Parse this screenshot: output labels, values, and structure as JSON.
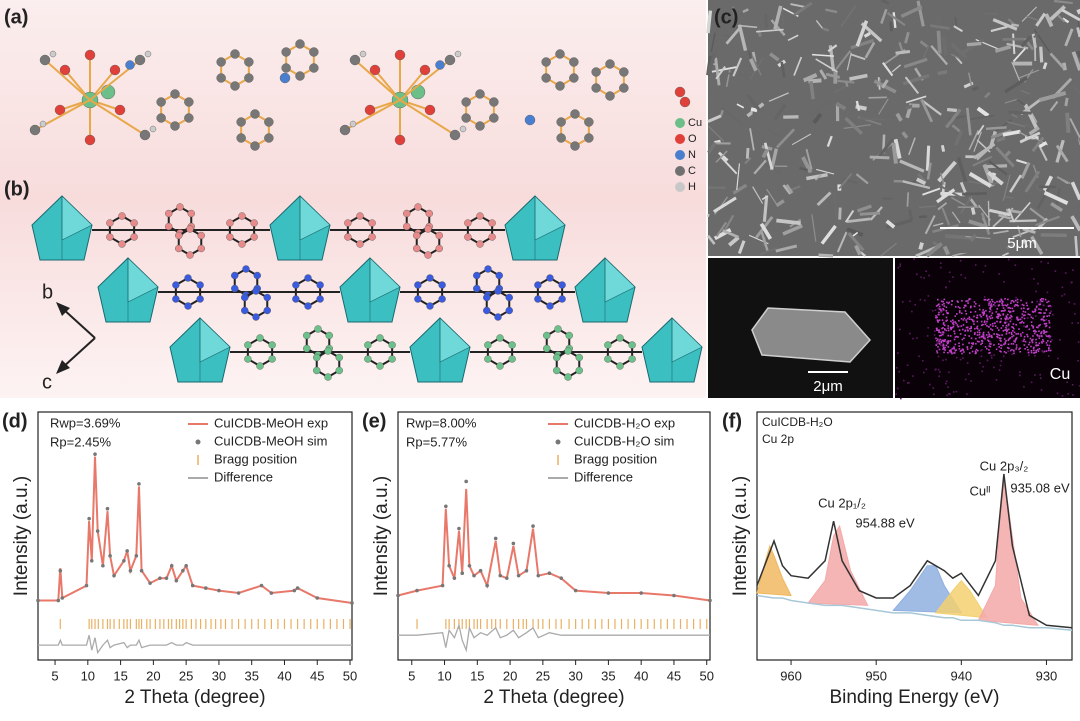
{
  "panels": {
    "a": {
      "label": "(a)",
      "legend": [
        "Cu",
        "O",
        "N",
        "C",
        "H"
      ]
    },
    "b": {
      "label": "(b)",
      "axes": [
        "b",
        "c"
      ]
    },
    "c": {
      "label": "(c)",
      "scale_bars": [
        "5μm",
        "2μm"
      ],
      "element": "Cu"
    }
  },
  "chart_data": [
    {
      "type": "line",
      "label": "(d)",
      "annotations": [
        "Rwp=3.69%",
        "Rp=2.45%"
      ],
      "xlabel": "2 Theta (degree)",
      "ylabel": "Intensity (a.u.)",
      "xlim": [
        2.4,
        50.3
      ],
      "xticks": [
        5,
        10,
        15,
        20,
        25,
        30,
        35,
        40,
        45,
        50
      ],
      "ylim": [
        0,
        100
      ],
      "x": [
        2.4,
        5.5,
        5.8,
        6.1,
        9.8,
        10.2,
        10.6,
        11.1,
        11.5,
        12.3,
        13.0,
        13.4,
        14.0,
        15.5,
        16.0,
        16.5,
        17.4,
        17.8,
        18.2,
        19.5,
        21,
        22,
        22.8,
        23.5,
        24.5,
        25,
        26,
        28,
        30,
        33,
        36.5,
        38,
        41.5,
        42,
        45,
        50.3
      ],
      "series": [
        {
          "name": "CuICDB-MeOH exp",
          "color": "#e8786a",
          "mark": "line",
          "values": [
            24,
            24,
            37,
            25,
            30,
            56,
            40,
            82,
            52,
            38,
            60,
            42,
            34,
            40,
            44,
            36,
            42,
            70,
            36,
            31,
            33,
            33,
            38,
            32,
            36,
            38,
            30,
            29,
            28,
            27,
            30,
            27,
            28,
            29,
            25,
            23
          ]
        },
        {
          "name": "CuICDB-MeOH sim",
          "color": "#777777",
          "mark": "dots",
          "values": [
            24,
            24,
            36,
            25,
            30,
            57,
            40,
            83,
            52,
            38,
            61,
            42,
            34,
            40,
            44,
            36,
            42,
            71,
            36,
            31,
            33,
            33,
            38,
            32,
            36,
            38,
            30,
            29,
            28,
            27,
            30,
            27,
            28,
            29,
            25,
            23
          ]
        },
        {
          "name": "Bragg position",
          "color": "#e8b060",
          "mark": "ticks",
          "positions": [
            5.8,
            10.2,
            10.6,
            11.1,
            11.6,
            12.3,
            13.0,
            13.4,
            14.0,
            14.8,
            15.5,
            16.0,
            16.5,
            17.4,
            17.8,
            18.2,
            19.0,
            19.5,
            20.3,
            21.0,
            21.6,
            22.3,
            22.8,
            23.5,
            24.0,
            24.5,
            25.0,
            25.8,
            26.5,
            27.2,
            28.0,
            28.8,
            29.5,
            30.3,
            31.0,
            32.0,
            33.0,
            34.0,
            35.0,
            36.0,
            37.0,
            38.0,
            39.0,
            40.0,
            41.0,
            42.0,
            43.0,
            44.0,
            45.0,
            46.0,
            47.0,
            48.0,
            49.0,
            50.0
          ]
        },
        {
          "name": "Difference",
          "color": "#aaaaaa",
          "mark": "line",
          "values": [
            6,
            6,
            8,
            6,
            6,
            10,
            4,
            9,
            3,
            6,
            8,
            5,
            6,
            7,
            5,
            6,
            6,
            8,
            5,
            6,
            6,
            6,
            7,
            6,
            6,
            7,
            6,
            6,
            6,
            6,
            6,
            6,
            6,
            6,
            6,
            6
          ]
        }
      ]
    },
    {
      "type": "line",
      "label": "(e)",
      "annotations": [
        "Rwp=8.00%",
        "Rp=5.77%"
      ],
      "xlabel": "2 Theta (degree)",
      "ylabel": "Intensity (a.u.)",
      "xlim": [
        2.9,
        50.5
      ],
      "xticks": [
        5,
        10,
        15,
        20,
        25,
        30,
        35,
        40,
        45,
        50
      ],
      "ylim": [
        0,
        100
      ],
      "x": [
        2.9,
        5.8,
        9.7,
        10.2,
        10.7,
        11.5,
        12.2,
        12.7,
        13.3,
        13.8,
        14.5,
        15.5,
        16.5,
        17.8,
        18.5,
        19.5,
        20.5,
        21.3,
        22.5,
        23.5,
        24.3,
        26,
        27.8,
        30,
        35,
        40,
        45,
        50.5
      ],
      "series": [
        {
          "name": "CuICDB-H₂O exp",
          "color": "#e8786a",
          "mark": "line",
          "values": [
            26,
            28,
            30,
            61,
            38,
            33,
            52,
            35,
            69,
            38,
            34,
            36,
            30,
            48,
            34,
            33,
            46,
            34,
            36,
            53,
            34,
            35,
            33,
            28,
            27,
            27,
            26,
            24
          ]
        },
        {
          "name": "CuICDB-H₂O sim",
          "color": "#777777",
          "mark": "dots",
          "values": [
            26,
            28,
            30,
            62,
            38,
            33,
            53,
            35,
            72,
            38,
            34,
            36,
            30,
            49,
            34,
            33,
            47,
            34,
            36,
            54,
            34,
            35,
            33,
            28,
            27,
            27,
            26,
            24
          ]
        },
        {
          "name": "Bragg position",
          "color": "#e8b060",
          "mark": "ticks",
          "positions": [
            5.8,
            10.2,
            10.7,
            11.5,
            12.2,
            12.7,
            13.3,
            13.8,
            14.5,
            15.0,
            15.5,
            16.5,
            17.2,
            17.8,
            18.5,
            19.5,
            20.5,
            21.3,
            22.0,
            22.5,
            23.5,
            24.3,
            25.0,
            26.0,
            27.0,
            27.8,
            29.0,
            30.0,
            31.0,
            32.0,
            33.0,
            34.0,
            35.0,
            36.0,
            37.0,
            38.0,
            39.0,
            40.0,
            41.0,
            42.0,
            43.0,
            44.0,
            45.0,
            46.0,
            47.0,
            48.0,
            49.0,
            50.0
          ]
        },
        {
          "name": "Difference",
          "color": "#aaaaaa",
          "mark": "line",
          "values": [
            10,
            10,
            11,
            5,
            12,
            9,
            14,
            8,
            4,
            13,
            9,
            11,
            10,
            13,
            9,
            10,
            12,
            9,
            11,
            13,
            9,
            11,
            10,
            10,
            10,
            10,
            10,
            10
          ]
        }
      ]
    },
    {
      "type": "xps",
      "label": "(f)",
      "annotations": [
        "CuICDB-H₂O",
        "Cu 2p",
        "Cu 2p₃/₂",
        "Cuᴵᴵ",
        "935.08 eV",
        "Cu 2p₁/₂",
        "954.88 eV"
      ],
      "xlabel": "Binding Energy (eV)",
      "ylabel": "Intensity (a.u.)",
      "xlim": [
        964,
        927
      ],
      "xticks": [
        960,
        950,
        940,
        930
      ],
      "ylim": [
        0,
        100
      ],
      "x": [
        964,
        962,
        961,
        960,
        958,
        956,
        955,
        954,
        952,
        950,
        948,
        946,
        944,
        942,
        941,
        940,
        938,
        936,
        935,
        934,
        932,
        930,
        927
      ],
      "series": [
        {
          "color": "#333333",
          "values": [
            30,
            48,
            38,
            34,
            33,
            40,
            56,
            40,
            28,
            25,
            25,
            30,
            40,
            36,
            33,
            35,
            26,
            40,
            75,
            46,
            18,
            14,
            13
          ]
        },
        {
          "color": "#a8c8d8",
          "values": [
            26,
            25,
            25,
            24,
            23,
            22,
            22,
            22,
            21,
            20,
            19,
            19,
            18,
            17,
            17,
            16,
            16,
            15,
            14,
            14,
            13,
            13,
            12
          ]
        }
      ],
      "components": [
        {
          "color": "#f0b860",
          "x": [
            964,
            963,
            962.5,
            962,
            961,
            960
          ],
          "values": [
            27,
            40,
            46,
            42,
            33,
            26
          ]
        },
        {
          "color": "#f4a8a8",
          "x": [
            958,
            956,
            955,
            954.3,
            953,
            951
          ],
          "values": [
            23,
            32,
            50,
            54,
            36,
            22
          ]
        },
        {
          "color": "#8fb0e0",
          "x": [
            948,
            946,
            944,
            943,
            942,
            940
          ],
          "values": [
            20,
            28,
            38,
            38,
            30,
            19
          ]
        },
        {
          "color": "#f3d070",
          "x": [
            943,
            941,
            940,
            939,
            937
          ],
          "values": [
            19,
            28,
            32,
            28,
            17
          ]
        },
        {
          "color": "#f4a8a8",
          "x": [
            938,
            936,
            935.5,
            935,
            934.5,
            933,
            931
          ],
          "values": [
            16,
            30,
            55,
            72,
            62,
            25,
            14
          ]
        }
      ]
    }
  ]
}
